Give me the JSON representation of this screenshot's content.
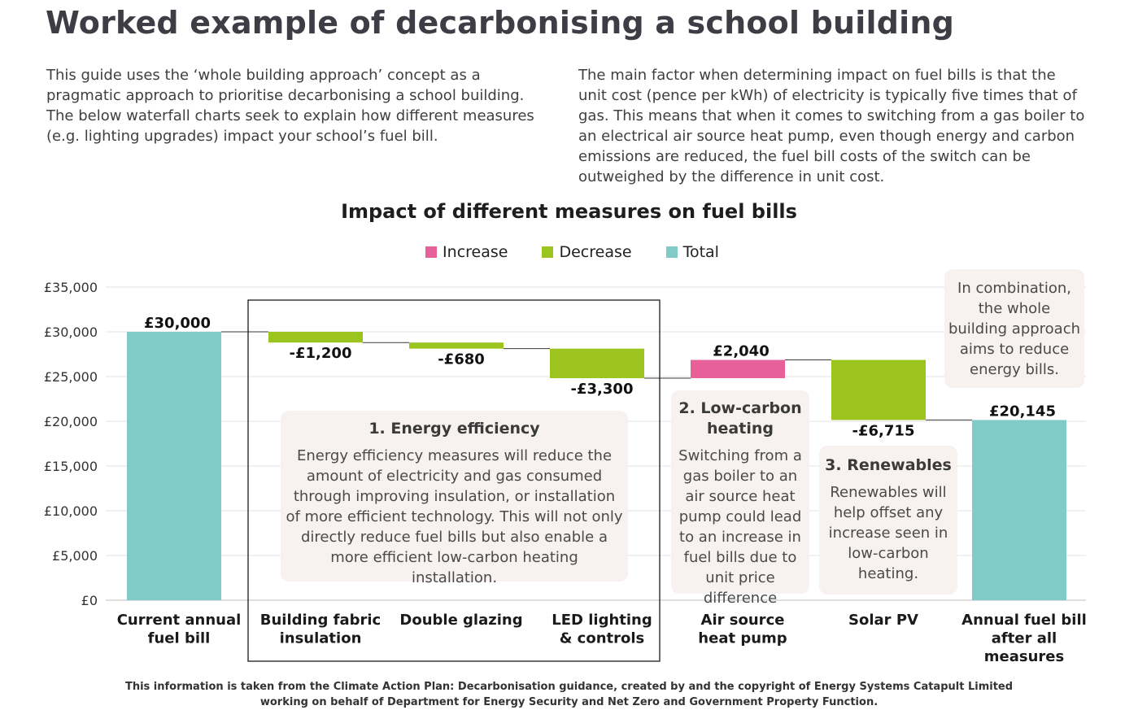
{
  "page": {
    "title": "Worked example of decarbonising a school building",
    "intro_left": "This guide uses the ‘whole building approach’ concept as a pragmatic approach to prioritise decarbonising a school building. The below waterfall charts seek to explain how different measures (e.g. lighting upgrades) impact your school’s fuel bill.",
    "intro_right": "The main factor when determining impact on fuel bills is that the unit cost (pence per kWh) of electricity is typically five times that of gas. This means that when it comes to switching from a gas boiler to an electrical air source heat pump, even though energy and carbon emissions are reduced, the fuel bill costs of the switch can be outweighed by the difference in unit cost.",
    "footer_line1": "This information is taken from the Climate Action Plan: Decarbonisation guidance, created by and the copyright of Energy Systems Catapult Limited",
    "footer_line2": "working on behalf of Department for Energy Security and Net Zero and Government Property Function."
  },
  "callouts": {
    "energy_efficiency": {
      "heading": "1. Energy efficiency",
      "text": "Energy efficiency measures will reduce the amount of electricity and gas consumed through improving insulation, or installation of more efficient technology. This will not only directly reduce fuel bills but also enable a more efficient low-carbon heating installation."
    },
    "low_carbon_heating": {
      "heading": "2. Low-carbon heating",
      "text": "Switching from a gas boiler to an air source heat pump could lead to an increase in fuel bills due to unit price difference"
    },
    "renewables": {
      "heading": "3. Renewables",
      "text": "Renewables will help offset any increase seen in low-carbon heating."
    },
    "combination": {
      "text": "In combination, the whole building approach aims to reduce energy bills."
    }
  },
  "chart_data": {
    "type": "bar",
    "subtype": "waterfall",
    "title": "Impact of different measures on fuel bills",
    "legend": [
      {
        "name": "Increase",
        "color": "#e8609a"
      },
      {
        "name": "Decrease",
        "color": "#9bc41f"
      },
      {
        "name": "Total",
        "color": "#80cac8"
      }
    ],
    "legend_position": "top-center",
    "ylim": [
      0,
      35000
    ],
    "yticks": [
      {
        "value": 35000,
        "label": "£35,000"
      },
      {
        "value": 30000,
        "label": "£30,000"
      },
      {
        "value": 25000,
        "label": "£25,000"
      },
      {
        "value": 20000,
        "label": "£20,000"
      },
      {
        "value": 15000,
        "label": "£15,000"
      },
      {
        "value": 10000,
        "label": "£10,000"
      },
      {
        "value": 5000,
        "label": "£5,000"
      },
      {
        "value": 0,
        "label": "£0"
      }
    ],
    "grid": true,
    "categories": [
      {
        "name": "current-annual-fuel-bill",
        "label_lines": [
          "Current annual",
          "fuel bill"
        ],
        "kind": "total",
        "value": 30000,
        "data_label": "£30,000"
      },
      {
        "name": "building-fabric-insulation",
        "label_lines": [
          "Building fabric",
          "insulation"
        ],
        "kind": "decrease",
        "value": -1200,
        "data_label": "-£1,200"
      },
      {
        "name": "double-glazing",
        "label_lines": [
          "Double glazing"
        ],
        "kind": "decrease",
        "value": -680,
        "data_label": "-£680"
      },
      {
        "name": "led-lighting-controls",
        "label_lines": [
          "LED lighting",
          "& controls"
        ],
        "kind": "decrease",
        "value": -3300,
        "data_label": "-£3,300"
      },
      {
        "name": "air-source-heat-pump",
        "label_lines": [
          "Air source",
          "heat pump"
        ],
        "kind": "increase",
        "value": 2040,
        "data_label": "£2,040"
      },
      {
        "name": "solar-pv",
        "label_lines": [
          "Solar PV"
        ],
        "kind": "decrease",
        "value": -6715,
        "data_label": "-£6,715"
      },
      {
        "name": "annual-fuel-bill-after-all-measures",
        "label_lines": [
          "Annual fuel bill",
          "after all",
          "measures"
        ],
        "kind": "total",
        "value": 20145,
        "data_label": "£20,145"
      }
    ]
  }
}
